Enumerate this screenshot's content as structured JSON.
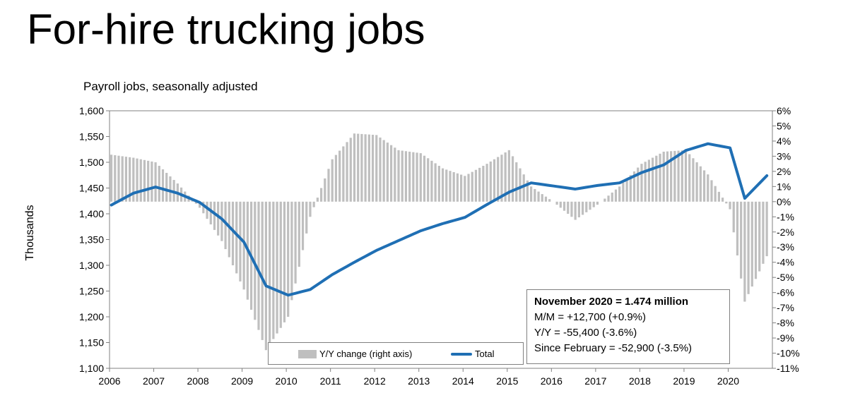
{
  "page": {
    "title": "For-hire trucking jobs"
  },
  "chart_data": {
    "type": "bar+line",
    "subtitle": "Payroll jobs, seasonally adjusted",
    "ylabel": "Thousands",
    "x_tick_labels": [
      "2006",
      "2007",
      "2008",
      "2009",
      "2010",
      "2011",
      "2012",
      "2013",
      "2014",
      "2015",
      "2016",
      "2017",
      "2018",
      "2019",
      "2020"
    ],
    "y_left": {
      "min": 1100,
      "max": 1600,
      "step": 50,
      "tick_labels": [
        "1,100",
        "1,150",
        "1,200",
        "1,250",
        "1,300",
        "1,350",
        "1,400",
        "1,450",
        "1,500",
        "1,550",
        "1,600"
      ]
    },
    "y_right": {
      "min": -11,
      "max": 6,
      "step": 1,
      "tick_labels": [
        "-11%",
        "-10%",
        "-9%",
        "-8%",
        "-7%",
        "-6%",
        "-5%",
        "-4%",
        "-3%",
        "-2%",
        "-1%",
        "0%",
        "1%",
        "2%",
        "3%",
        "4%",
        "5%",
        "6%"
      ]
    },
    "grid": false,
    "colors": {
      "bars": "#bfbfbf",
      "line": "#1f6fb4",
      "axis": "#808080"
    },
    "series": [
      {
        "name": "Y/Y change (right axis)",
        "type": "bar",
        "axis": "right",
        "points": [
          [
            "2006-01",
            3.1
          ],
          [
            "2006-07",
            2.9
          ],
          [
            "2007-01",
            2.6
          ],
          [
            "2007-07",
            1.2
          ],
          [
            "2008-01",
            -0.4
          ],
          [
            "2008-07",
            -2.6
          ],
          [
            "2009-01",
            -5.8
          ],
          [
            "2009-07",
            -9.8
          ],
          [
            "2010-01",
            -7.6
          ],
          [
            "2010-07",
            -1.0
          ],
          [
            "2011-01",
            2.8
          ],
          [
            "2011-07",
            4.5
          ],
          [
            "2012-01",
            4.4
          ],
          [
            "2012-07",
            3.4
          ],
          [
            "2013-01",
            3.2
          ],
          [
            "2013-07",
            2.2
          ],
          [
            "2014-01",
            1.7
          ],
          [
            "2014-07",
            2.5
          ],
          [
            "2015-01",
            3.4
          ],
          [
            "2015-07",
            1.0
          ],
          [
            "2016-01",
            0.0
          ],
          [
            "2016-07",
            -1.2
          ],
          [
            "2017-01",
            -0.2
          ],
          [
            "2017-07",
            1.0
          ],
          [
            "2018-01",
            2.5
          ],
          [
            "2018-07",
            3.3
          ],
          [
            "2019-01",
            3.4
          ],
          [
            "2019-07",
            1.8
          ],
          [
            "2020-01",
            -0.5
          ],
          [
            "2020-05",
            -6.6
          ],
          [
            "2020-11",
            -3.6
          ]
        ]
      },
      {
        "name": "Total",
        "type": "line",
        "axis": "left",
        "points": [
          [
            "2006-01",
            1417
          ],
          [
            "2006-07",
            1440
          ],
          [
            "2007-01",
            1452
          ],
          [
            "2007-07",
            1440
          ],
          [
            "2008-01",
            1422
          ],
          [
            "2008-07",
            1390
          ],
          [
            "2009-01",
            1345
          ],
          [
            "2009-07",
            1260
          ],
          [
            "2010-01",
            1242
          ],
          [
            "2010-07",
            1253
          ],
          [
            "2011-01",
            1282
          ],
          [
            "2011-07",
            1306
          ],
          [
            "2012-01",
            1329
          ],
          [
            "2012-07",
            1348
          ],
          [
            "2013-01",
            1367
          ],
          [
            "2013-07",
            1381
          ],
          [
            "2014-01",
            1393
          ],
          [
            "2014-07",
            1418
          ],
          [
            "2015-01",
            1442
          ],
          [
            "2015-07",
            1460
          ],
          [
            "2016-01",
            1454
          ],
          [
            "2016-07",
            1448
          ],
          [
            "2017-01",
            1455
          ],
          [
            "2017-07",
            1460
          ],
          [
            "2018-01",
            1480
          ],
          [
            "2018-07",
            1495
          ],
          [
            "2019-01",
            1523
          ],
          [
            "2019-07",
            1536
          ],
          [
            "2020-01",
            1528
          ],
          [
            "2020-05",
            1430
          ],
          [
            "2020-11",
            1474
          ]
        ]
      }
    ],
    "annotation": {
      "headline": "November 2020 = 1.474 million",
      "lines": [
        "M/M = +12,700 (+0.9%)",
        "Y/Y = -55,400 (-3.6%)",
        "Since February = -52,900 (-3.5%)"
      ]
    }
  }
}
